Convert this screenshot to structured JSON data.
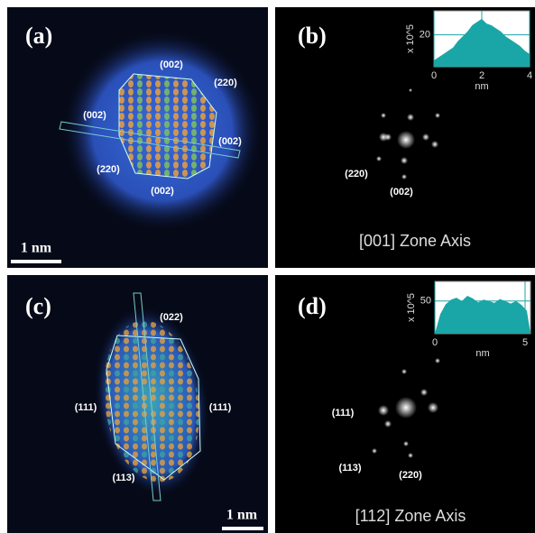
{
  "panels": [
    {
      "label": "(a)",
      "annotations": [
        "(002)",
        "(220)",
        "(002)",
        "(002)",
        "(220)",
        "(002)"
      ],
      "scale_bar": "1 nm"
    },
    {
      "label": "(b)",
      "annotations": [
        "(220)",
        "(002)"
      ],
      "caption": "[001] Zone Axis",
      "inset": {
        "type": "area",
        "x_label": "nm",
        "y_label": "x 10^5",
        "color": "#1aa6a6",
        "grid": true,
        "xlim": [
          0,
          4
        ],
        "ylim": [
          0,
          35
        ],
        "xticks": [
          0,
          2,
          4
        ],
        "yticks": [
          20
        ],
        "x": [
          0,
          0.2,
          0.4,
          0.6,
          0.8,
          1.0,
          1.2,
          1.4,
          1.6,
          1.8,
          2.0,
          2.2,
          2.4,
          2.6,
          2.8,
          3.0,
          3.2,
          3.4,
          3.6,
          3.8,
          4.0
        ],
        "values": [
          4,
          6,
          8,
          10,
          12,
          16,
          19,
          22,
          26,
          28,
          30,
          27,
          26,
          24,
          22,
          19,
          17,
          15,
          13,
          10,
          8
        ]
      }
    },
    {
      "label": "(c)",
      "annotations": [
        "(022)",
        "(111)",
        "(111)",
        "(113)"
      ],
      "scale_bar": "1 nm"
    },
    {
      "label": "(d)",
      "annotations": [
        "(111)",
        "(113)",
        "(220)"
      ],
      "caption": "[112] Zone Axis",
      "inset": {
        "type": "area",
        "x_label": "nm",
        "y_label": "x 10^5",
        "color": "#1aa6a6",
        "grid": true,
        "xlim": [
          0,
          5.3
        ],
        "ylim": [
          0,
          80
        ],
        "xticks": [
          0,
          5
        ],
        "yticks": [
          50
        ],
        "x": [
          0,
          0.3,
          0.6,
          0.9,
          1.2,
          1.5,
          1.8,
          2.1,
          2.4,
          2.7,
          3.0,
          3.3,
          3.6,
          3.9,
          4.2,
          4.5,
          4.8,
          5.1,
          5.3
        ],
        "values": [
          0,
          30,
          45,
          52,
          55,
          50,
          58,
          54,
          48,
          52,
          50,
          47,
          53,
          50,
          46,
          50,
          44,
          35,
          0
        ]
      }
    }
  ]
}
